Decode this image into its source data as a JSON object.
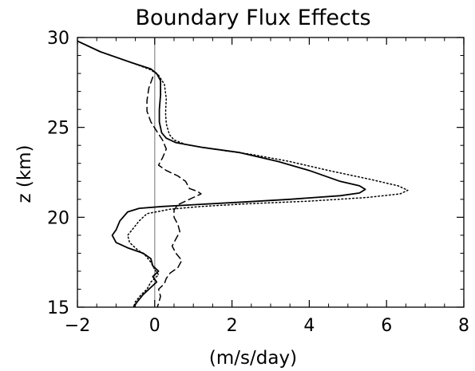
{
  "chart_data": {
    "type": "line",
    "title": "Boundary Flux Effects",
    "xlabel": "(m/s/day)",
    "ylabel": "z (km)",
    "xlim": [
      -2,
      8
    ],
    "ylim": [
      15,
      30
    ],
    "xticks": [
      "-2",
      "0",
      "2",
      "4",
      "6",
      "8"
    ],
    "yticks": [
      "15",
      "20",
      "25",
      "30"
    ],
    "grid": false,
    "legend": "none",
    "zero_line_color": "#999999",
    "series": [
      {
        "linestyle": "solid",
        "color": "#000000",
        "points": [
          [
            -2.0,
            29.8
          ],
          [
            -1.4,
            29.2
          ],
          [
            -0.6,
            28.6
          ],
          [
            -0.1,
            28.25
          ],
          [
            0.05,
            28.0
          ],
          [
            0.15,
            27.6
          ],
          [
            0.15,
            26.8
          ],
          [
            0.12,
            26.0
          ],
          [
            0.12,
            25.3
          ],
          [
            0.18,
            24.7
          ],
          [
            0.3,
            24.4
          ],
          [
            0.55,
            24.15
          ],
          [
            1.2,
            23.9
          ],
          [
            2.2,
            23.6
          ],
          [
            3.2,
            23.1
          ],
          [
            4.0,
            22.6
          ],
          [
            4.8,
            22.0
          ],
          [
            5.3,
            21.75
          ],
          [
            5.45,
            21.55
          ],
          [
            5.3,
            21.35
          ],
          [
            4.8,
            21.2
          ],
          [
            3.5,
            21.0
          ],
          [
            2.3,
            20.85
          ],
          [
            1.0,
            20.7
          ],
          [
            0.2,
            20.6
          ],
          [
            -0.4,
            20.5
          ],
          [
            -0.7,
            20.3
          ],
          [
            -0.9,
            19.8
          ],
          [
            -1.0,
            19.3
          ],
          [
            -1.1,
            19.0
          ],
          [
            -1.0,
            18.6
          ],
          [
            -0.7,
            18.3
          ],
          [
            -0.3,
            18.0
          ],
          [
            -0.1,
            17.7
          ],
          [
            -0.05,
            17.3
          ],
          [
            0.1,
            17.0
          ],
          [
            -0.05,
            16.7
          ],
          [
            0.05,
            16.4
          ],
          [
            -0.15,
            16.0
          ],
          [
            -0.3,
            15.7
          ],
          [
            -0.45,
            15.3
          ],
          [
            -0.55,
            15.0
          ]
        ]
      },
      {
        "linestyle": "dotted",
        "color": "#000000",
        "points": [
          [
            -2.0,
            29.8
          ],
          [
            -1.4,
            29.2
          ],
          [
            -0.6,
            28.6
          ],
          [
            -0.1,
            28.2
          ],
          [
            0.1,
            27.9
          ],
          [
            0.25,
            27.4
          ],
          [
            0.3,
            26.6
          ],
          [
            0.28,
            25.8
          ],
          [
            0.3,
            25.2
          ],
          [
            0.38,
            24.6
          ],
          [
            0.5,
            24.3
          ],
          [
            0.8,
            24.05
          ],
          [
            1.5,
            23.8
          ],
          [
            2.5,
            23.5
          ],
          [
            3.5,
            23.1
          ],
          [
            4.5,
            22.6
          ],
          [
            5.6,
            22.1
          ],
          [
            6.3,
            21.75
          ],
          [
            6.55,
            21.5
          ],
          [
            6.35,
            21.3
          ],
          [
            5.5,
            21.1
          ],
          [
            4.0,
            20.9
          ],
          [
            2.4,
            20.75
          ],
          [
            1.2,
            20.6
          ],
          [
            0.4,
            20.45
          ],
          [
            -0.2,
            20.2
          ],
          [
            -0.4,
            19.8
          ],
          [
            -0.55,
            19.4
          ],
          [
            -0.7,
            19.0
          ],
          [
            -0.65,
            18.6
          ],
          [
            -0.45,
            18.2
          ],
          [
            -0.25,
            17.9
          ],
          [
            -0.1,
            17.5
          ],
          [
            0.0,
            17.1
          ],
          [
            0.1,
            16.8
          ],
          [
            -0.1,
            16.4
          ],
          [
            -0.2,
            16.0
          ],
          [
            -0.35,
            15.7
          ],
          [
            -0.5,
            15.3
          ],
          [
            -0.55,
            15.0
          ]
        ]
      },
      {
        "linestyle": "dashed",
        "color": "#000000",
        "points": [
          [
            -0.05,
            27.8
          ],
          [
            -0.15,
            27.2
          ],
          [
            -0.2,
            26.5
          ],
          [
            -0.2,
            25.9
          ],
          [
            -0.1,
            25.3
          ],
          [
            0.05,
            24.8
          ],
          [
            0.2,
            24.3
          ],
          [
            0.3,
            23.8
          ],
          [
            0.2,
            23.3
          ],
          [
            0.1,
            22.9
          ],
          [
            0.3,
            22.6
          ],
          [
            0.6,
            22.3
          ],
          [
            0.8,
            22.0
          ],
          [
            0.85,
            21.8
          ],
          [
            0.9,
            21.6
          ],
          [
            1.1,
            21.45
          ],
          [
            1.2,
            21.3
          ],
          [
            1.0,
            21.1
          ],
          [
            0.8,
            20.9
          ],
          [
            0.6,
            20.7
          ],
          [
            0.5,
            20.4
          ],
          [
            0.5,
            20.0
          ],
          [
            0.6,
            19.6
          ],
          [
            0.65,
            19.2
          ],
          [
            0.55,
            18.8
          ],
          [
            0.45,
            18.4
          ],
          [
            0.55,
            18.0
          ],
          [
            0.7,
            17.6
          ],
          [
            0.6,
            17.2
          ],
          [
            0.4,
            16.9
          ],
          [
            0.3,
            16.6
          ],
          [
            0.25,
            16.3
          ],
          [
            0.1,
            16.0
          ],
          [
            0.15,
            15.6
          ],
          [
            0.1,
            15.2
          ],
          [
            0.05,
            14.9
          ]
        ]
      }
    ]
  }
}
